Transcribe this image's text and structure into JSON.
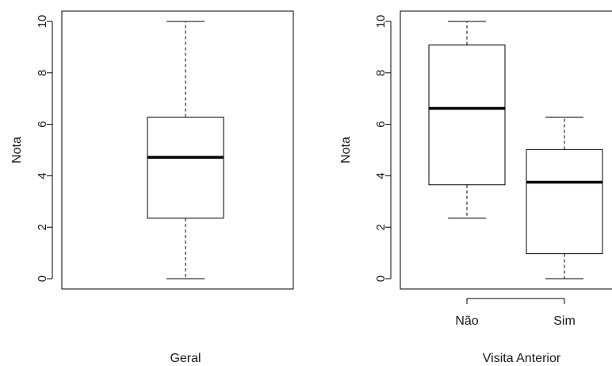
{
  "chart_data": [
    {
      "type": "boxplot",
      "title": "",
      "xlabel": "Geral",
      "ylabel": "Nota",
      "ylim": [
        -0.4,
        10.4
      ],
      "yticks": [
        "0",
        "2",
        "4",
        "6",
        "8",
        "10"
      ],
      "categories": [
        ""
      ],
      "boxes": [
        {
          "min": 0,
          "q1": 2.35,
          "median": 4.72,
          "q3": 6.28,
          "max": 10
        }
      ]
    },
    {
      "type": "boxplot",
      "title": "",
      "xlabel": "Visita Anterior",
      "ylabel": "Nota",
      "ylim": [
        -0.4,
        10.4
      ],
      "yticks": [
        "0",
        "2",
        "4",
        "6",
        "8",
        "10"
      ],
      "categories": [
        "Não",
        "Sim"
      ],
      "boxes": [
        {
          "min": 2.35,
          "q1": 3.65,
          "median": 6.62,
          "q3": 9.08,
          "max": 10
        },
        {
          "min": 0,
          "q1": 0.97,
          "median": 3.75,
          "q3": 5.02,
          "max": 6.28
        }
      ]
    }
  ]
}
